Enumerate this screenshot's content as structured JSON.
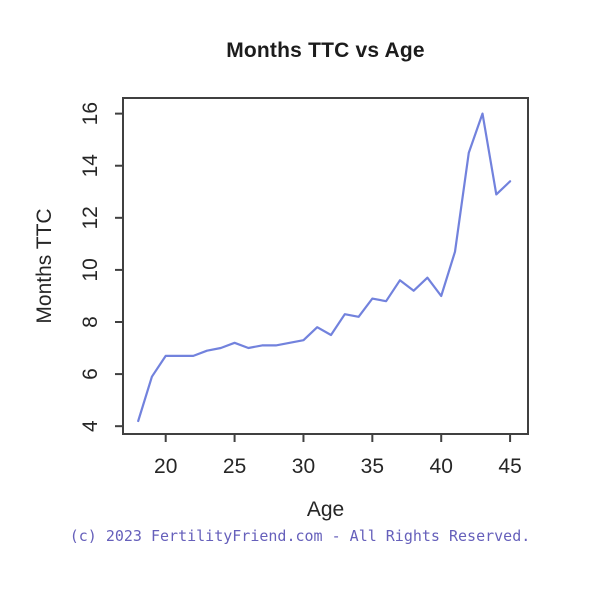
{
  "figure": {
    "background": "#ffffff"
  },
  "footer": {
    "text": "(c) 2023 FertilityFriend.com - All Rights Reserved.",
    "color": "#6660bb"
  },
  "chart_data": {
    "type": "line",
    "title": "Months TTC vs Age",
    "xlabel": "Age",
    "ylabel": "Months TTC",
    "x": [
      18,
      19,
      20,
      21,
      22,
      23,
      24,
      25,
      26,
      27,
      28,
      29,
      30,
      31,
      32,
      33,
      34,
      35,
      36,
      37,
      38,
      39,
      40,
      41,
      42,
      43,
      44,
      45
    ],
    "y": [
      4.2,
      5.9,
      6.7,
      6.7,
      6.7,
      6.9,
      7.0,
      7.2,
      7.0,
      7.1,
      7.1,
      7.2,
      7.3,
      7.8,
      7.5,
      8.3,
      8.2,
      8.9,
      8.8,
      9.6,
      9.2,
      9.7,
      9.0,
      10.7,
      14.5,
      16.0,
      12.9,
      13.4
    ],
    "xticks": [
      20,
      25,
      30,
      35,
      40,
      45
    ],
    "yticks": [
      4,
      6,
      8,
      10,
      12,
      14,
      16
    ],
    "xlim": [
      16.9,
      46.3
    ],
    "ylim": [
      3.7,
      16.6
    ],
    "grid": false,
    "legend": null,
    "line_color": "#7282dd",
    "axis_color": "#404040",
    "tick_label_color": "#262626"
  }
}
